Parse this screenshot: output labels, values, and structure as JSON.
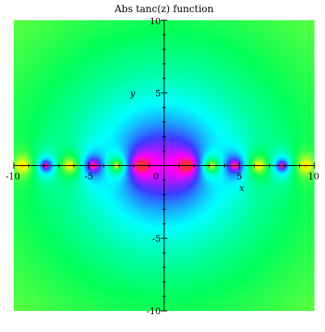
{
  "chart_data": {
    "type": "heatmap",
    "title": "Abs tanc(z) function",
    "xlabel": "x",
    "ylabel": "y",
    "xlim": [
      -10,
      10
    ],
    "ylim": [
      -10,
      10
    ],
    "function": "abs(tan(z)/z)",
    "x_ticks": [
      {
        "value": -10,
        "label": "-10"
      },
      {
        "value": -5,
        "label": "-5"
      },
      {
        "value": 0,
        "label": "0"
      },
      {
        "value": 5,
        "label": "5"
      },
      {
        "value": 10,
        "label": "10"
      }
    ],
    "y_ticks": [
      {
        "value": -10,
        "label": "-10"
      },
      {
        "value": -5,
        "label": "-5"
      },
      {
        "value": 5,
        "label": "5"
      },
      {
        "value": 10,
        "label": "10"
      }
    ],
    "colormap": [
      "#ff2a3a",
      "#ff00ff",
      "#3b3bff",
      "#00ffff",
      "#00ff5a",
      "#9dff2b",
      "#ffff00",
      "#ffcc00"
    ],
    "grid": false
  }
}
